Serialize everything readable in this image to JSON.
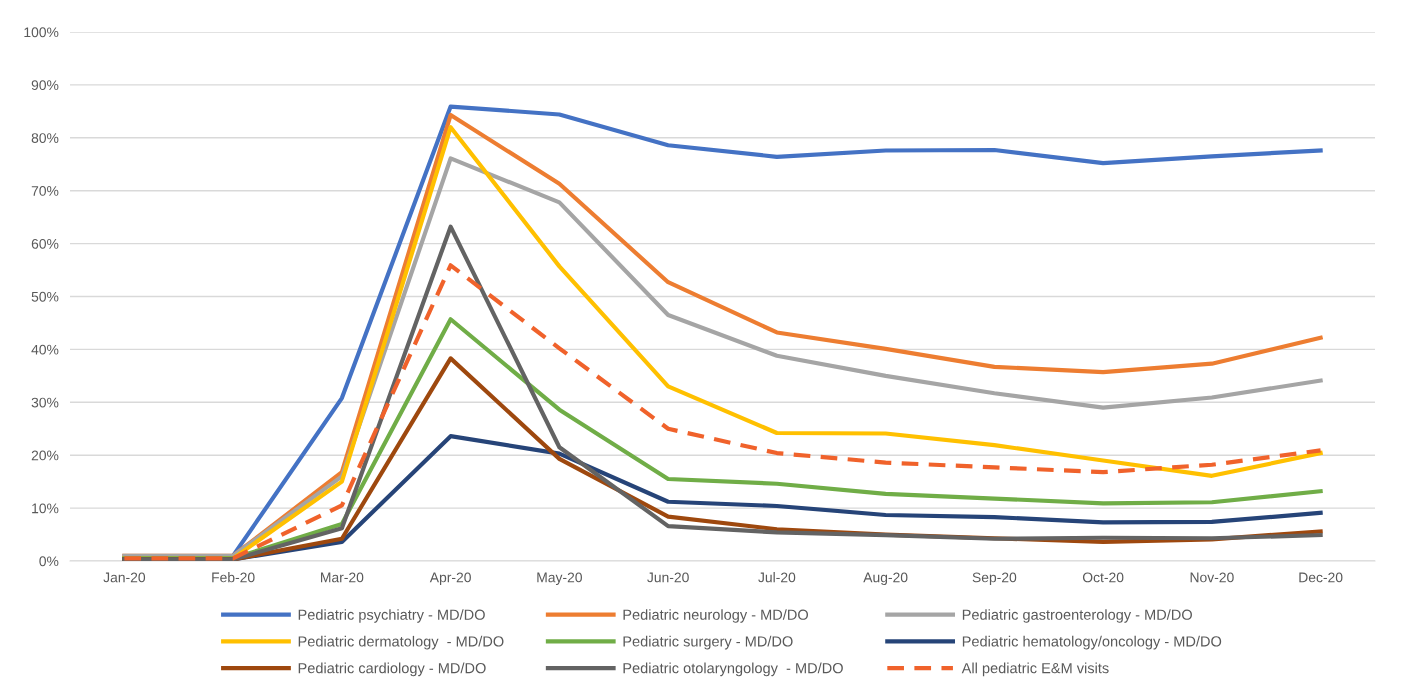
{
  "chart_data": {
    "type": "line",
    "categories": [
      "Jan-20",
      "Feb-20",
      "Mar-20",
      "Apr-20",
      "May-20",
      "Jun-20",
      "Jul-20",
      "Aug-20",
      "Sep-20",
      "Oct-20",
      "Nov-20",
      "Dec-20"
    ],
    "series": [
      {
        "name": "Pediatric psychiatry - MD/DO",
        "color": "#4472c4",
        "values": [
          null,
          1.0,
          30.8,
          85.9,
          84.4,
          78.6,
          76.4,
          77.6,
          77.7,
          75.2,
          76.5,
          77.6
        ]
      },
      {
        "name": "Pediatric neurology - MD/DO",
        "color": "#ed7d31",
        "values": [
          1.0,
          1.0,
          16.8,
          84.3,
          71.3,
          52.7,
          43.2,
          40.1,
          36.7,
          35.7,
          37.3,
          42.2
        ]
      },
      {
        "name": "Pediatric gastroenterology - MD/DO",
        "color": "#a5a5a5",
        "values": [
          1.0,
          1.0,
          16.0,
          76.1,
          67.8,
          46.5,
          38.8,
          35.0,
          31.7,
          29.0,
          30.9,
          34.1
        ]
      },
      {
        "name": "Pediatric dermatology  - MD/DO",
        "color": "#ffc000",
        "values": [
          0.5,
          0.5,
          15.0,
          82.0,
          55.7,
          33.0,
          24.2,
          24.1,
          21.9,
          19.0,
          16.1,
          20.4
        ]
      },
      {
        "name": "Pediatric surgery - MD/DO",
        "color": "#70ad47",
        "values": [
          0.5,
          0.5,
          7.0,
          45.7,
          28.6,
          15.5,
          14.6,
          12.7,
          11.8,
          10.9,
          11.1,
          13.2
        ]
      },
      {
        "name": "Pediatric hematology/oncology - MD/DO",
        "color": "#264478",
        "values": [
          0.3,
          0.3,
          3.6,
          23.6,
          20.3,
          11.2,
          10.4,
          8.7,
          8.3,
          7.3,
          7.4,
          9.1
        ]
      },
      {
        "name": "Pediatric cardiology - MD/DO",
        "color": "#9e480e",
        "values": [
          0.3,
          0.3,
          4.2,
          38.3,
          19.3,
          8.4,
          6.0,
          5.0,
          4.3,
          3.6,
          4.1,
          5.6
        ]
      },
      {
        "name": "Pediatric otolaryngology  - MD/DO",
        "color": "#636363",
        "values": [
          0.3,
          0.3,
          6.2,
          63.2,
          21.5,
          6.6,
          5.4,
          4.9,
          4.2,
          4.4,
          4.3,
          4.9
        ]
      },
      {
        "name": "All pediatric E&M visits",
        "color": "#f0622b",
        "line_style": "dashed",
        "values": [
          0.5,
          0.5,
          10.5,
          55.9,
          40.2,
          25.0,
          20.4,
          18.6,
          17.7,
          16.8,
          18.2,
          20.9
        ]
      }
    ],
    "ylim": [
      0,
      100
    ],
    "yticks": [
      {
        "value": 0,
        "label": "0%"
      },
      {
        "value": 10,
        "label": "10%"
      },
      {
        "value": 20,
        "label": "20%"
      },
      {
        "value": 30,
        "label": "30%"
      },
      {
        "value": 40,
        "label": "40%"
      },
      {
        "value": 50,
        "label": "50%"
      },
      {
        "value": 60,
        "label": "60%"
      },
      {
        "value": 70,
        "label": "70%"
      },
      {
        "value": 80,
        "label": "80%"
      },
      {
        "value": 90,
        "label": "90%"
      },
      {
        "value": 100,
        "label": "100%"
      }
    ],
    "grid": "y",
    "legend": "bottom",
    "marker": "none",
    "line_style": "solid"
  }
}
